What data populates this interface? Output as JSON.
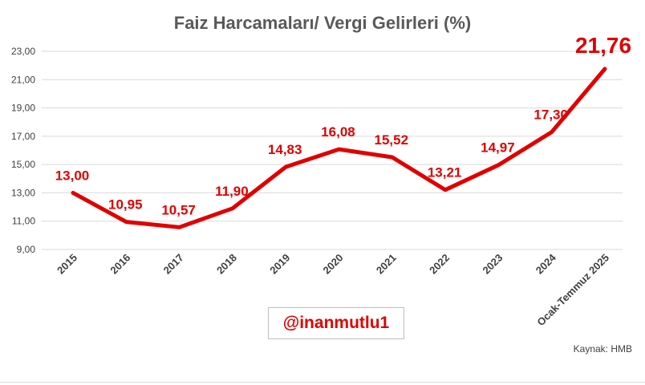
{
  "chart_data": {
    "type": "line",
    "title": "Faiz Harcamaları/ Vergi Gelirleri (%)",
    "categories": [
      "2015",
      "2016",
      "2017",
      "2018",
      "2019",
      "2020",
      "2021",
      "2022",
      "2023",
      "2024",
      "Ocak-Temmuz 2025"
    ],
    "series": [
      {
        "values": [
          13.0,
          10.95,
          10.57,
          11.9,
          14.83,
          16.08,
          15.52,
          13.21,
          14.97,
          17.3,
          21.76
        ],
        "labels": [
          "13,00",
          "10,95",
          "10,57",
          "11,90",
          "14,83",
          "16,08",
          "15,52",
          "13,21",
          "14,97",
          "17,30",
          "21,76"
        ],
        "color": "#e00000"
      }
    ],
    "ylim": [
      9,
      23
    ],
    "yticks": [
      {
        "value": 9,
        "label": "9,00"
      },
      {
        "value": 11,
        "label": "11,00"
      },
      {
        "value": 13,
        "label": "13,00"
      },
      {
        "value": 15,
        "label": "15,00"
      },
      {
        "value": 17,
        "label": "17,00"
      },
      {
        "value": 19,
        "label": "19,00"
      },
      {
        "value": 21,
        "label": "21,00"
      },
      {
        "value": 23,
        "label": "23,00"
      }
    ],
    "grid": true,
    "legend": "none"
  },
  "annotations": {
    "handle": "@inanmutlu1",
    "source": "Kaynak: HMB"
  }
}
